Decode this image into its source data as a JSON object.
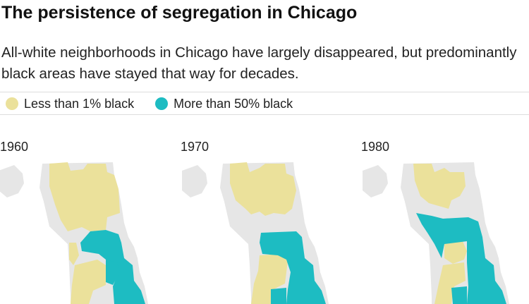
{
  "title": "The persistence of segregation in Chicago",
  "subtitle": "All-white neighborhoods in Chicago have largely disappeared, but predominantly black areas have stayed that way for decades.",
  "colors": {
    "white_area": "#ebe19b",
    "black_area": "#1dbcc2",
    "city_base": "#e6e6e6",
    "rule": "#dddddd"
  },
  "legend": [
    {
      "label": "Less than 1% black",
      "color": "#ebe19b",
      "icon": "yellow-circle"
    },
    {
      "label": "More than 50% black",
      "color": "#1dbcc2",
      "icon": "teal-circle"
    }
  ],
  "maps": [
    {
      "year": "1960"
    },
    {
      "year": "1970"
    },
    {
      "year": "1980"
    }
  ]
}
